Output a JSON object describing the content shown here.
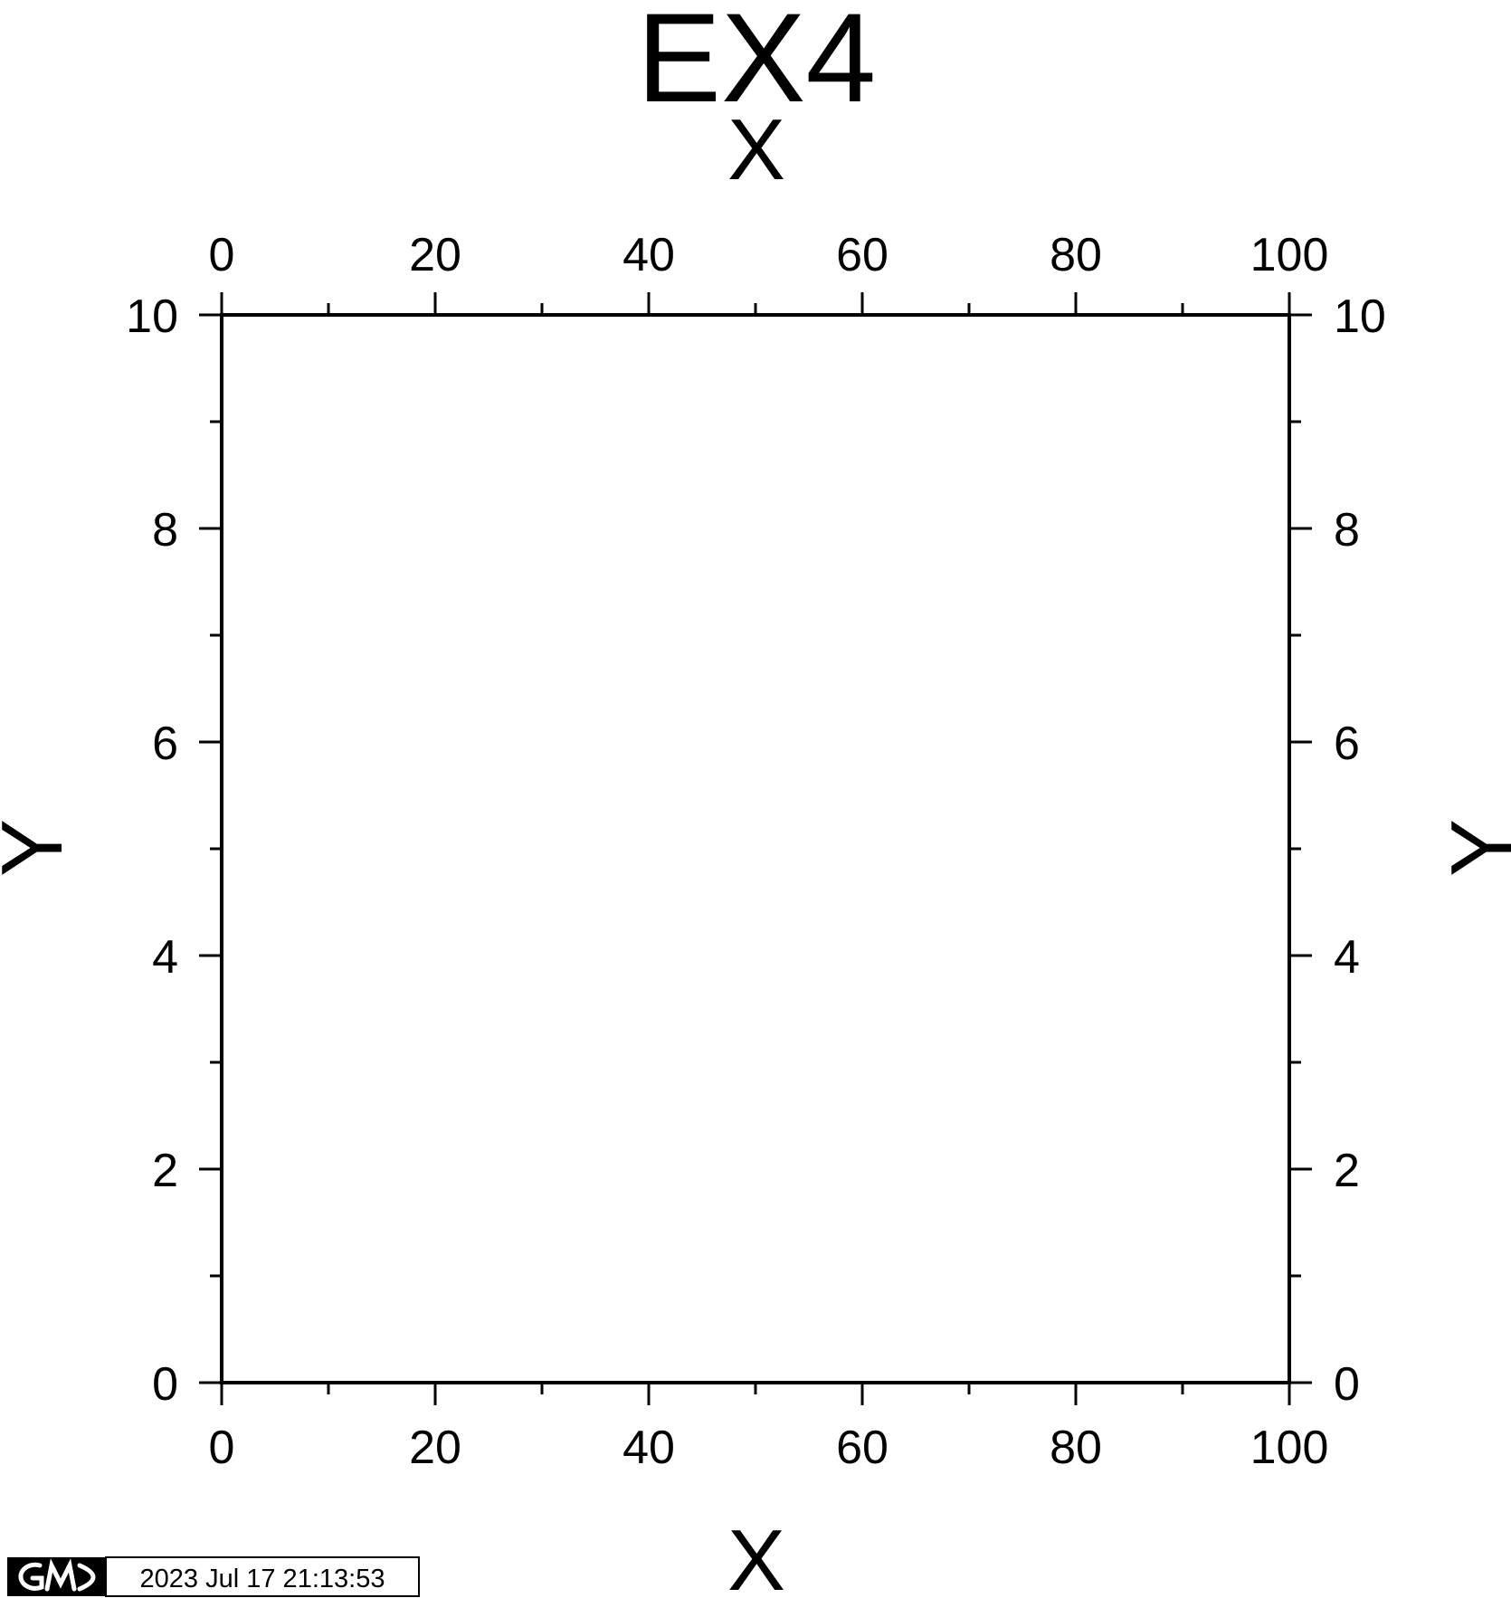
{
  "chart_data": {
    "type": "scatter",
    "title": "EX4",
    "xlabel": "X",
    "ylabel": "Y",
    "xlim": [
      0,
      100
    ],
    "ylim": [
      0,
      10
    ],
    "x_ticks": [
      0,
      20,
      40,
      60,
      80,
      100
    ],
    "y_ticks": [
      0,
      2,
      4,
      6,
      8,
      10
    ],
    "x_minor_step": 10,
    "y_minor_step": 1,
    "x_tick_labels": [
      "0",
      "20",
      "40",
      "60",
      "80",
      "100"
    ],
    "y_tick_labels": [
      "0",
      "2",
      "4",
      "6",
      "8",
      "10"
    ],
    "series": [],
    "grid": false,
    "frame": "all four sides annotated"
  },
  "timestamp": {
    "logo": "GMT",
    "text": "2023 Jul 17 21:13:53"
  },
  "colors": {
    "ink": "#000000",
    "background": "#ffffff"
  }
}
